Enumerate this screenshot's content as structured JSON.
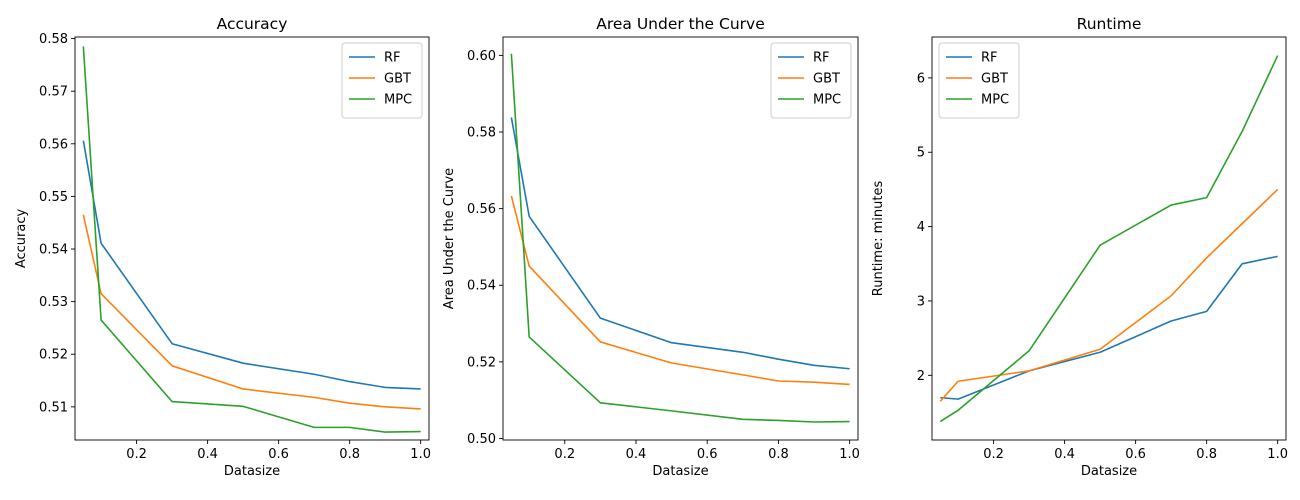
{
  "colors": {
    "RF": "#1f77b4",
    "GBT": "#ff7f0e",
    "MPC": "#2ca02c"
  },
  "chart_data": [
    {
      "type": "line",
      "title": "Accuracy",
      "xlabel": "Datasize",
      "ylabel": "Accuracy",
      "xlim": [
        0.0265,
        1.0235
      ],
      "ylim": [
        0.5037,
        0.5803
      ],
      "xticks": [
        0.2,
        0.4,
        0.6,
        0.8,
        1.0
      ],
      "xtick_labels": [
        "0.2",
        "0.4",
        "0.6",
        "0.8",
        "1.0"
      ],
      "yticks": [
        0.51,
        0.52,
        0.53,
        0.54,
        0.55,
        0.56,
        0.57,
        0.58
      ],
      "ytick_labels": [
        "0.51",
        "0.52",
        "0.53",
        "0.54",
        "0.55",
        "0.56",
        "0.57",
        "0.58"
      ],
      "legend_position": "top-right",
      "x": [
        0.05,
        0.1,
        0.3,
        0.5,
        0.7,
        0.8,
        0.9,
        1.0
      ],
      "series": [
        {
          "name": "RF",
          "values": [
            0.5606,
            0.5411,
            0.522,
            0.5183,
            0.5162,
            0.5148,
            0.5137,
            0.5134
          ]
        },
        {
          "name": "GBT",
          "values": [
            0.5465,
            0.5315,
            0.5178,
            0.5134,
            0.5118,
            0.5107,
            0.51,
            0.5096
          ]
        },
        {
          "name": "MPC",
          "values": [
            0.5785,
            0.5265,
            0.511,
            0.5101,
            0.5061,
            0.5061,
            0.5052,
            0.5053
          ]
        }
      ]
    },
    {
      "type": "line",
      "title": "Area Under the Curve",
      "xlabel": "Datasize",
      "ylabel": "Area Under the Curve",
      "xlim": [
        0.0265,
        1.0235
      ],
      "ylim": [
        0.4996,
        0.6048
      ],
      "xticks": [
        0.2,
        0.4,
        0.6,
        0.8,
        1.0
      ],
      "xtick_labels": [
        "0.2",
        "0.4",
        "0.6",
        "0.8",
        "1.0"
      ],
      "yticks": [
        0.5,
        0.52,
        0.54,
        0.56,
        0.58,
        0.6
      ],
      "ytick_labels": [
        "0.50",
        "0.52",
        "0.54",
        "0.56",
        "0.58",
        "0.60"
      ],
      "legend_position": "top-right",
      "x": [
        0.05,
        0.1,
        0.3,
        0.5,
        0.7,
        0.8,
        0.9,
        1.0
      ],
      "series": [
        {
          "name": "RF",
          "values": [
            0.5838,
            0.558,
            0.5314,
            0.525,
            0.5225,
            0.5207,
            0.5191,
            0.5182
          ]
        },
        {
          "name": "GBT",
          "values": [
            0.5633,
            0.545,
            0.5252,
            0.5197,
            0.5166,
            0.515,
            0.5147,
            0.5141
          ]
        },
        {
          "name": "MPC",
          "values": [
            0.6004,
            0.5265,
            0.5093,
            0.5072,
            0.505,
            0.5047,
            0.5043,
            0.5044
          ]
        }
      ]
    },
    {
      "type": "line",
      "title": "Runtime",
      "xlabel": "Datasize",
      "ylabel": "Runtime: minutes",
      "xlim": [
        0.0265,
        1.0235
      ],
      "ylim": [
        1.13,
        6.55
      ],
      "xticks": [
        0.2,
        0.4,
        0.6,
        0.8,
        1.0
      ],
      "xtick_labels": [
        "0.2",
        "0.4",
        "0.6",
        "0.8",
        "1.0"
      ],
      "yticks": [
        2,
        3,
        4,
        5,
        6
      ],
      "ytick_labels": [
        "2",
        "3",
        "4",
        "5",
        "6"
      ],
      "legend_position": "top-left",
      "x": [
        0.05,
        0.1,
        0.3,
        0.5,
        0.7,
        0.8,
        0.9,
        1.0
      ],
      "series": [
        {
          "name": "RF",
          "values": [
            1.7,
            1.68,
            2.06,
            2.31,
            2.73,
            2.86,
            3.5,
            3.6
          ]
        },
        {
          "name": "GBT",
          "values": [
            1.65,
            1.92,
            2.06,
            2.35,
            3.07,
            3.58,
            4.04,
            4.5
          ]
        },
        {
          "name": "MPC",
          "values": [
            1.38,
            1.53,
            2.33,
            3.75,
            4.29,
            4.39,
            5.28,
            6.3
          ]
        }
      ]
    }
  ]
}
